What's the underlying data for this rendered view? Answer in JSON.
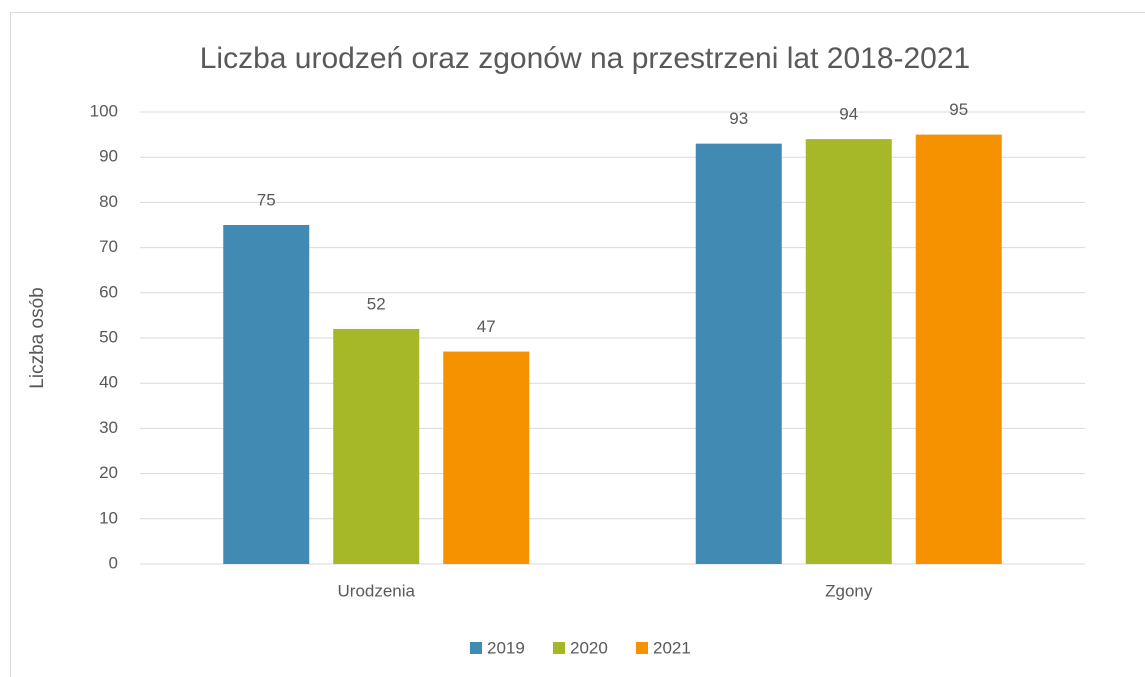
{
  "chart_data": {
    "type": "bar",
    "title": "Liczba urodzeń oraz zgonów na przestrzeni lat 2018-2021",
    "ylabel": "Liczba osób",
    "categories": [
      "Urodzenia",
      "Zgony"
    ],
    "series": [
      {
        "name": "2019",
        "color": "#418ab3",
        "values": [
          75,
          93
        ]
      },
      {
        "name": "2020",
        "color": "#a6b727",
        "values": [
          52,
          94
        ]
      },
      {
        "name": "2021",
        "color": "#f69200",
        "values": [
          47,
          95
        ]
      }
    ],
    "ylim": [
      0,
      100
    ],
    "yticks": [
      0,
      10,
      20,
      30,
      40,
      50,
      60,
      70,
      80,
      90,
      100
    ],
    "grid": true,
    "legend": "bottom"
  }
}
